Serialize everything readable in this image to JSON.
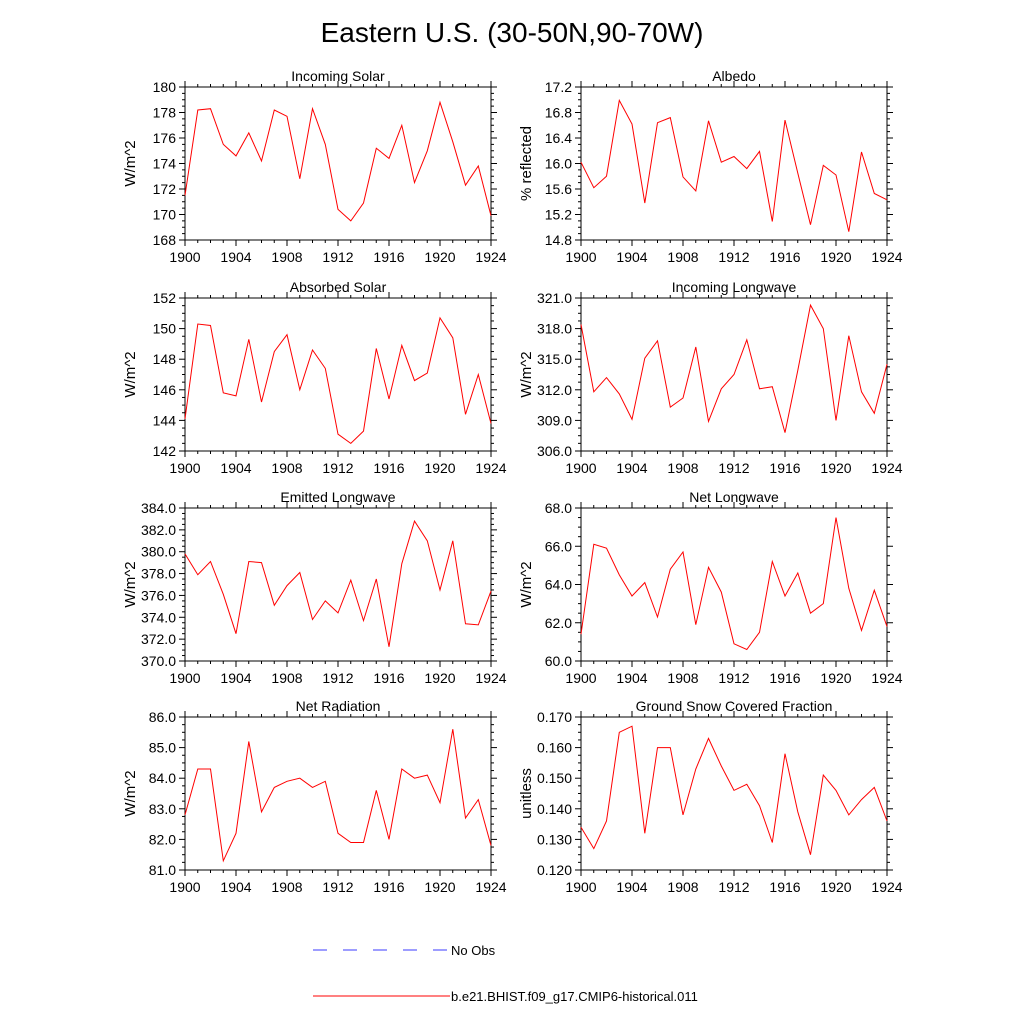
{
  "figure": {
    "title": "Eastern U.S. (30-50N,90-70W)",
    "series_color": "#ff0000",
    "obs_color": "#3b3bff"
  },
  "legend": {
    "obs_label": "No Obs",
    "model_label": "b.e21.BHIST.f09_g17.CMIP6-historical.011"
  },
  "chart_data": [
    {
      "type": "line",
      "title": "Incoming Solar",
      "ylabel": "W/m^2",
      "xlim": [
        1900,
        1924
      ],
      "xticks": [
        "1900",
        "1904",
        "1908",
        "1912",
        "1916",
        "1920",
        "1924"
      ],
      "ylim": [
        168,
        180
      ],
      "yticks": [
        "168",
        "170",
        "172",
        "174",
        "176",
        "178",
        "180"
      ],
      "x": [
        1900,
        1901,
        1902,
        1903,
        1904,
        1905,
        1906,
        1907,
        1908,
        1909,
        1910,
        1911,
        1912,
        1913,
        1914,
        1915,
        1916,
        1917,
        1918,
        1919,
        1920,
        1921,
        1922,
        1923,
        1924
      ],
      "values": [
        171.5,
        178.2,
        178.3,
        175.5,
        174.6,
        176.4,
        174.2,
        178.2,
        177.7,
        172.8,
        178.3,
        175.5,
        170.4,
        169.5,
        170.9,
        175.2,
        174.4,
        177.0,
        172.5,
        175.0,
        178.8,
        175.7,
        172.3,
        173.8,
        169.9
      ]
    },
    {
      "type": "line",
      "title": "Albedo",
      "ylabel": "% reflected",
      "xlim": [
        1900,
        1924
      ],
      "xticks": [
        "1900",
        "1904",
        "1908",
        "1912",
        "1916",
        "1920",
        "1924"
      ],
      "ylim": [
        14.8,
        17.2
      ],
      "yticks": [
        "14.8",
        "15.2",
        "15.6",
        "16.0",
        "16.4",
        "16.8",
        "17.2"
      ],
      "x": [
        1900,
        1901,
        1902,
        1903,
        1904,
        1905,
        1906,
        1907,
        1908,
        1909,
        1910,
        1911,
        1912,
        1913,
        1914,
        1915,
        1916,
        1917,
        1918,
        1919,
        1920,
        1921,
        1922,
        1923,
        1924
      ],
      "values": [
        16.02,
        15.62,
        15.8,
        16.99,
        16.62,
        15.38,
        16.64,
        16.72,
        15.79,
        15.57,
        16.67,
        16.02,
        16.11,
        15.92,
        16.19,
        15.09,
        16.68,
        15.85,
        15.04,
        15.97,
        15.82,
        14.93,
        16.18,
        15.53,
        15.43
      ]
    },
    {
      "type": "line",
      "title": "Absorbed Solar",
      "ylabel": "W/m^2",
      "xlim": [
        1900,
        1924
      ],
      "xticks": [
        "1900",
        "1904",
        "1908",
        "1912",
        "1916",
        "1920",
        "1924"
      ],
      "ylim": [
        142,
        152
      ],
      "yticks": [
        "142",
        "144",
        "146",
        "148",
        "150",
        "152"
      ],
      "x": [
        1900,
        1901,
        1902,
        1903,
        1904,
        1905,
        1906,
        1907,
        1908,
        1909,
        1910,
        1911,
        1912,
        1913,
        1914,
        1915,
        1916,
        1917,
        1918,
        1919,
        1920,
        1921,
        1922,
        1923,
        1924
      ],
      "values": [
        144.1,
        150.3,
        150.2,
        145.8,
        145.6,
        149.3,
        145.2,
        148.5,
        149.6,
        146.0,
        148.6,
        147.4,
        143.1,
        142.5,
        143.3,
        148.7,
        145.4,
        148.9,
        146.6,
        147.1,
        150.7,
        149.4,
        144.4,
        147.0,
        143.8
      ]
    },
    {
      "type": "line",
      "title": "Incoming Longwave",
      "ylabel": "W/m^2",
      "xlim": [
        1900,
        1924
      ],
      "xticks": [
        "1900",
        "1904",
        "1908",
        "1912",
        "1916",
        "1920",
        "1924"
      ],
      "ylim": [
        306.0,
        321.0
      ],
      "yticks": [
        "306.0",
        "309.0",
        "312.0",
        "315.0",
        "318.0",
        "321.0"
      ],
      "x": [
        1900,
        1901,
        1902,
        1903,
        1904,
        1905,
        1906,
        1907,
        1908,
        1909,
        1910,
        1911,
        1912,
        1913,
        1914,
        1915,
        1916,
        1917,
        1918,
        1919,
        1920,
        1921,
        1922,
        1923,
        1924
      ],
      "values": [
        318.4,
        311.8,
        313.2,
        311.6,
        309.1,
        315.1,
        316.8,
        310.3,
        311.2,
        316.2,
        308.9,
        312.1,
        313.5,
        316.9,
        312.1,
        312.3,
        307.8,
        313.9,
        320.3,
        318.0,
        309.0,
        317.3,
        311.8,
        309.7,
        314.5
      ]
    },
    {
      "type": "line",
      "title": "Emitted Longwave",
      "ylabel": "W/m^2",
      "xlim": [
        1900,
        1924
      ],
      "xticks": [
        "1900",
        "1904",
        "1908",
        "1912",
        "1916",
        "1920",
        "1924"
      ],
      "ylim": [
        370.0,
        384.0
      ],
      "yticks": [
        "370.0",
        "372.0",
        "374.0",
        "376.0",
        "378.0",
        "380.0",
        "382.0",
        "384.0"
      ],
      "x": [
        1900,
        1901,
        1902,
        1903,
        1904,
        1905,
        1906,
        1907,
        1908,
        1909,
        1910,
        1911,
        1912,
        1913,
        1914,
        1915,
        1916,
        1917,
        1918,
        1919,
        1920,
        1921,
        1922,
        1923,
        1924
      ],
      "values": [
        379.8,
        377.9,
        379.1,
        376.1,
        372.5,
        379.1,
        379.0,
        375.1,
        376.9,
        378.1,
        373.8,
        375.5,
        374.4,
        377.4,
        373.7,
        377.5,
        371.3,
        378.9,
        382.8,
        381.0,
        376.5,
        381.0,
        373.4,
        373.3,
        376.4
      ]
    },
    {
      "type": "line",
      "title": "Net Longwave",
      "ylabel": "W/m^2",
      "xlim": [
        1900,
        1924
      ],
      "xticks": [
        "1900",
        "1904",
        "1908",
        "1912",
        "1916",
        "1920",
        "1924"
      ],
      "ylim": [
        60.0,
        68.0
      ],
      "yticks": [
        "60.0",
        "62.0",
        "64.0",
        "66.0",
        "68.0"
      ],
      "x": [
        1900,
        1901,
        1902,
        1903,
        1904,
        1905,
        1906,
        1907,
        1908,
        1909,
        1910,
        1911,
        1912,
        1913,
        1914,
        1915,
        1916,
        1917,
        1918,
        1919,
        1920,
        1921,
        1922,
        1923,
        1924
      ],
      "values": [
        61.4,
        66.1,
        65.9,
        64.5,
        63.4,
        64.1,
        62.3,
        64.8,
        65.7,
        61.9,
        64.9,
        63.6,
        60.9,
        60.6,
        61.5,
        65.2,
        63.4,
        64.6,
        62.5,
        63.0,
        67.5,
        63.8,
        61.6,
        63.7,
        61.8
      ]
    },
    {
      "type": "line",
      "title": "Net Radiation",
      "ylabel": "W/m^2",
      "xlim": [
        1900,
        1924
      ],
      "xticks": [
        "1900",
        "1904",
        "1908",
        "1912",
        "1916",
        "1920",
        "1924"
      ],
      "ylim": [
        81.0,
        86.0
      ],
      "yticks": [
        "81.0",
        "82.0",
        "83.0",
        "84.0",
        "85.0",
        "86.0"
      ],
      "x": [
        1900,
        1901,
        1902,
        1903,
        1904,
        1905,
        1906,
        1907,
        1908,
        1909,
        1910,
        1911,
        1912,
        1913,
        1914,
        1915,
        1916,
        1917,
        1918,
        1919,
        1920,
        1921,
        1922,
        1923,
        1924
      ],
      "values": [
        82.8,
        84.3,
        84.3,
        81.3,
        82.2,
        85.2,
        82.9,
        83.7,
        83.9,
        84.0,
        83.7,
        83.9,
        82.2,
        81.9,
        81.9,
        83.6,
        82.0,
        84.3,
        84.0,
        84.1,
        83.2,
        85.6,
        82.7,
        83.3,
        81.8
      ]
    },
    {
      "type": "line",
      "title": "Ground Snow Covered Fraction",
      "ylabel": "unitless",
      "xlim": [
        1900,
        1924
      ],
      "xticks": [
        "1900",
        "1904",
        "1908",
        "1912",
        "1916",
        "1920",
        "1924"
      ],
      "ylim": [
        0.12,
        0.17
      ],
      "yticks": [
        "0.120",
        "0.130",
        "0.140",
        "0.150",
        "0.160",
        "0.170"
      ],
      "x": [
        1900,
        1901,
        1902,
        1903,
        1904,
        1905,
        1906,
        1907,
        1908,
        1909,
        1910,
        1911,
        1912,
        1913,
        1914,
        1915,
        1916,
        1917,
        1918,
        1919,
        1920,
        1921,
        1922,
        1923,
        1924
      ],
      "values": [
        0.134,
        0.127,
        0.136,
        0.165,
        0.167,
        0.132,
        0.16,
        0.16,
        0.138,
        0.153,
        0.163,
        0.154,
        0.146,
        0.148,
        0.141,
        0.129,
        0.158,
        0.139,
        0.125,
        0.151,
        0.146,
        0.138,
        0.143,
        0.147,
        0.136
      ]
    }
  ]
}
